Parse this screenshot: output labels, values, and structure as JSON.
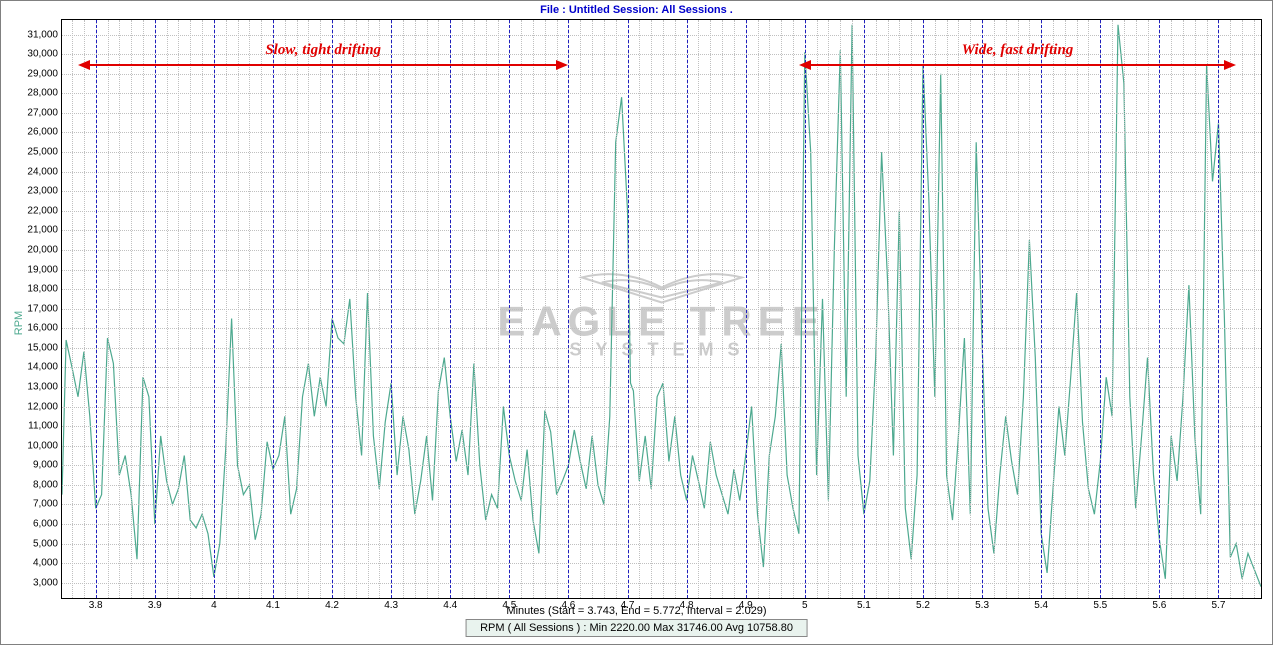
{
  "header": {
    "text": "File : Untitled    Session: All Sessions ."
  },
  "chart": {
    "type": "line",
    "ylabel": "RPM",
    "xlabel": "Minutes (Start = 3.743,  End = 5.772,  Interval =  2.029)",
    "stats_text": "RPM ( All Sessions ) :  Min 2220.00     Max 31746.00     Avg 10758.80",
    "line_color": "#4da98f",
    "line_width": 1.2,
    "background_color": "#ffffff",
    "grid_minor_color": "#c0c0c0",
    "grid_major_color": "#2020c0",
    "xlim": [
      3.743,
      5.772
    ],
    "ylim": [
      2220,
      31746
    ],
    "yticks": [
      3000,
      4000,
      5000,
      6000,
      7000,
      8000,
      9000,
      10000,
      11000,
      12000,
      13000,
      14000,
      15000,
      16000,
      17000,
      18000,
      19000,
      20000,
      21000,
      22000,
      23000,
      24000,
      25000,
      26000,
      27000,
      28000,
      29000,
      30000,
      31000
    ],
    "xticks_major": [
      3.8,
      3.9,
      4.0,
      4.1,
      4.2,
      4.3,
      4.4,
      4.5,
      4.6,
      4.7,
      4.8,
      4.9,
      5.0,
      5.1,
      5.2,
      5.3,
      5.4,
      5.5,
      5.6,
      5.7
    ],
    "xticks_minor_step": 0.02,
    "watermark_main": "EAGLE TREE",
    "watermark_sub": "SYSTEMS",
    "annotations": [
      {
        "label": "Slow, tight drifting",
        "x_from": 3.77,
        "x_to": 4.6,
        "y": 29500
      },
      {
        "label": "Wide, fast drifting",
        "x_from": 4.99,
        "x_to": 5.73,
        "y": 29500
      }
    ],
    "annotation_color": "#e00000",
    "series": [
      [
        3.743,
        7500
      ],
      [
        3.75,
        15400
      ],
      [
        3.76,
        14000
      ],
      [
        3.77,
        12500
      ],
      [
        3.78,
        14800
      ],
      [
        3.79,
        11500
      ],
      [
        3.8,
        6800
      ],
      [
        3.81,
        7500
      ],
      [
        3.82,
        15500
      ],
      [
        3.83,
        14200
      ],
      [
        3.84,
        8500
      ],
      [
        3.85,
        9500
      ],
      [
        3.86,
        7500
      ],
      [
        3.87,
        4200
      ],
      [
        3.88,
        13500
      ],
      [
        3.89,
        12500
      ],
      [
        3.9,
        6000
      ],
      [
        3.91,
        10500
      ],
      [
        3.92,
        8200
      ],
      [
        3.93,
        7000
      ],
      [
        3.94,
        7800
      ],
      [
        3.95,
        9500
      ],
      [
        3.96,
        6200
      ],
      [
        3.97,
        5800
      ],
      [
        3.98,
        6500
      ],
      [
        3.99,
        5500
      ],
      [
        4.0,
        3300
      ],
      [
        4.01,
        5000
      ],
      [
        4.02,
        9800
      ],
      [
        4.03,
        16500
      ],
      [
        4.04,
        9000
      ],
      [
        4.05,
        7500
      ],
      [
        4.06,
        8000
      ],
      [
        4.07,
        5200
      ],
      [
        4.08,
        6500
      ],
      [
        4.09,
        10200
      ],
      [
        4.1,
        8800
      ],
      [
        4.11,
        9500
      ],
      [
        4.12,
        11500
      ],
      [
        4.13,
        6500
      ],
      [
        4.14,
        7800
      ],
      [
        4.15,
        12500
      ],
      [
        4.16,
        14200
      ],
      [
        4.17,
        11500
      ],
      [
        4.18,
        13500
      ],
      [
        4.19,
        12000
      ],
      [
        4.2,
        16500
      ],
      [
        4.21,
        15500
      ],
      [
        4.22,
        15200
      ],
      [
        4.23,
        17500
      ],
      [
        4.24,
        12500
      ],
      [
        4.25,
        9500
      ],
      [
        4.26,
        17800
      ],
      [
        4.27,
        10500
      ],
      [
        4.28,
        7800
      ],
      [
        4.29,
        11200
      ],
      [
        4.3,
        13200
      ],
      [
        4.31,
        8500
      ],
      [
        4.32,
        11500
      ],
      [
        4.33,
        9800
      ],
      [
        4.34,
        6500
      ],
      [
        4.35,
        8200
      ],
      [
        4.36,
        10500
      ],
      [
        4.37,
        7200
      ],
      [
        4.38,
        12800
      ],
      [
        4.39,
        14500
      ],
      [
        4.4,
        11500
      ],
      [
        4.41,
        9200
      ],
      [
        4.42,
        10800
      ],
      [
        4.43,
        8500
      ],
      [
        4.44,
        14200
      ],
      [
        4.45,
        9000
      ],
      [
        4.46,
        6200
      ],
      [
        4.47,
        7500
      ],
      [
        4.48,
        6800
      ],
      [
        4.49,
        12000
      ],
      [
        4.5,
        9500
      ],
      [
        4.51,
        8200
      ],
      [
        4.52,
        7200
      ],
      [
        4.53,
        9800
      ],
      [
        4.54,
        6200
      ],
      [
        4.55,
        4500
      ],
      [
        4.56,
        11800
      ],
      [
        4.57,
        10700
      ],
      [
        4.58,
        7500
      ],
      [
        4.59,
        8200
      ],
      [
        4.6,
        9000
      ],
      [
        4.61,
        10800
      ],
      [
        4.62,
        9200
      ],
      [
        4.63,
        7800
      ],
      [
        4.64,
        10500
      ],
      [
        4.65,
        8000
      ],
      [
        4.66,
        7000
      ],
      [
        4.67,
        11500
      ],
      [
        4.68,
        25500
      ],
      [
        4.69,
        27800
      ],
      [
        4.7,
        22000
      ],
      [
        4.705,
        13200
      ],
      [
        4.71,
        12800
      ],
      [
        4.72,
        8200
      ],
      [
        4.73,
        10500
      ],
      [
        4.74,
        7800
      ],
      [
        4.75,
        12500
      ],
      [
        4.76,
        13200
      ],
      [
        4.77,
        9200
      ],
      [
        4.78,
        11500
      ],
      [
        4.79,
        8500
      ],
      [
        4.8,
        7200
      ],
      [
        4.81,
        9500
      ],
      [
        4.82,
        8200
      ],
      [
        4.83,
        6800
      ],
      [
        4.84,
        10200
      ],
      [
        4.85,
        8500
      ],
      [
        4.86,
        7500
      ],
      [
        4.87,
        6500
      ],
      [
        4.88,
        8800
      ],
      [
        4.89,
        7200
      ],
      [
        4.9,
        9500
      ],
      [
        4.91,
        12000
      ],
      [
        4.92,
        6500
      ],
      [
        4.93,
        3800
      ],
      [
        4.94,
        9500
      ],
      [
        4.95,
        11500
      ],
      [
        4.96,
        15200
      ],
      [
        4.97,
        8500
      ],
      [
        4.98,
        6800
      ],
      [
        4.99,
        5500
      ],
      [
        5.0,
        30100
      ],
      [
        5.01,
        25000
      ],
      [
        5.02,
        8500
      ],
      [
        5.03,
        17500
      ],
      [
        5.04,
        7200
      ],
      [
        5.05,
        20000
      ],
      [
        5.06,
        30200
      ],
      [
        5.07,
        12500
      ],
      [
        5.08,
        31500
      ],
      [
        5.09,
        9500
      ],
      [
        5.1,
        6500
      ],
      [
        5.11,
        8200
      ],
      [
        5.12,
        14500
      ],
      [
        5.13,
        25000
      ],
      [
        5.14,
        18500
      ],
      [
        5.15,
        9500
      ],
      [
        5.16,
        22000
      ],
      [
        5.17,
        6800
      ],
      [
        5.18,
        4200
      ],
      [
        5.19,
        8500
      ],
      [
        5.2,
        29500
      ],
      [
        5.21,
        22500
      ],
      [
        5.22,
        12500
      ],
      [
        5.23,
        29000
      ],
      [
        5.24,
        8500
      ],
      [
        5.25,
        6200
      ],
      [
        5.26,
        10500
      ],
      [
        5.27,
        15500
      ],
      [
        5.28,
        6500
      ],
      [
        5.29,
        25500
      ],
      [
        5.3,
        15200
      ],
      [
        5.31,
        6800
      ],
      [
        5.32,
        4500
      ],
      [
        5.33,
        8500
      ],
      [
        5.34,
        11500
      ],
      [
        5.35,
        9200
      ],
      [
        5.36,
        7500
      ],
      [
        5.37,
        12500
      ],
      [
        5.38,
        20500
      ],
      [
        5.39,
        14500
      ],
      [
        5.4,
        5500
      ],
      [
        5.41,
        3500
      ],
      [
        5.42,
        7800
      ],
      [
        5.43,
        12000
      ],
      [
        5.44,
        9500
      ],
      [
        5.45,
        13500
      ],
      [
        5.46,
        17800
      ],
      [
        5.47,
        11200
      ],
      [
        5.48,
        7800
      ],
      [
        5.49,
        6500
      ],
      [
        5.5,
        9200
      ],
      [
        5.51,
        13500
      ],
      [
        5.52,
        11500
      ],
      [
        5.53,
        31500
      ],
      [
        5.54,
        28500
      ],
      [
        5.55,
        12500
      ],
      [
        5.56,
        6800
      ],
      [
        5.57,
        10500
      ],
      [
        5.58,
        14500
      ],
      [
        5.59,
        8500
      ],
      [
        5.6,
        5200
      ],
      [
        5.61,
        3200
      ],
      [
        5.62,
        10500
      ],
      [
        5.63,
        8200
      ],
      [
        5.64,
        12500
      ],
      [
        5.65,
        18200
      ],
      [
        5.66,
        10500
      ],
      [
        5.67,
        6500
      ],
      [
        5.68,
        29500
      ],
      [
        5.69,
        23500
      ],
      [
        5.7,
        26500
      ],
      [
        5.71,
        16500
      ],
      [
        5.72,
        4300
      ],
      [
        5.73,
        5000
      ],
      [
        5.74,
        3200
      ],
      [
        5.75,
        4500
      ],
      [
        5.772,
        2800
      ]
    ]
  }
}
